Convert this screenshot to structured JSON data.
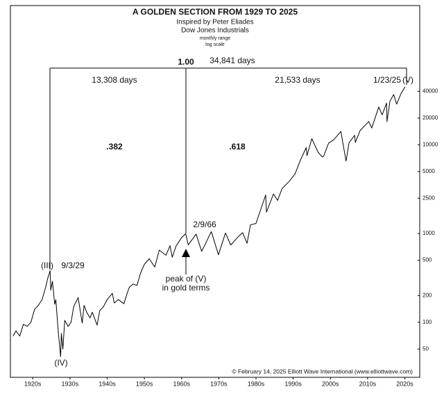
{
  "chart_data": {
    "type": "line",
    "title": "A GOLDEN SECTION FROM 1929 TO 2025",
    "subtitle": [
      "Inspired by Peter Eliades",
      "Dow Jones Industrials",
      "monthly range",
      "log scale"
    ],
    "yscale": "log",
    "grid": false,
    "color": "#000000",
    "xlim": [
      1919,
      2029
    ],
    "ylim": [
      24,
      370000
    ],
    "xticks": [
      {
        "value": 1925,
        "label": "1920s"
      },
      {
        "value": 1935,
        "label": "1930s"
      },
      {
        "value": 1945,
        "label": "1940s"
      },
      {
        "value": 1955,
        "label": "1950s"
      },
      {
        "value": 1965,
        "label": "1960s"
      },
      {
        "value": 1975,
        "label": "1970s"
      },
      {
        "value": 1985,
        "label": "1980s"
      },
      {
        "value": 1995,
        "label": "1990s"
      },
      {
        "value": 2005,
        "label": "2000s"
      },
      {
        "value": 2015,
        "label": "2010s"
      },
      {
        "value": 2025,
        "label": "2020s"
      }
    ],
    "yticks": [
      50,
      100,
      200,
      500,
      1000,
      2500,
      5000,
      10000,
      20000,
      40000
    ],
    "x": [
      1919.7,
      1920.5,
      1921.5,
      1922.5,
      1923.5,
      1924.5,
      1925.5,
      1926.5,
      1927.5,
      1928.5,
      1929.0,
      1929.67,
      1929.85,
      1930.3,
      1930.9,
      1931.2,
      1931.9,
      1932.5,
      1932.7,
      1933.1,
      1933.6,
      1934.5,
      1935.3,
      1936.0,
      1937.2,
      1938.3,
      1938.8,
      1939.5,
      1940.4,
      1941.0,
      1942.3,
      1943.0,
      1944.0,
      1945.0,
      1946.4,
      1946.9,
      1948.0,
      1949.5,
      1950.5,
      1951.0,
      1952.0,
      1953.0,
      1954.0,
      1955.0,
      1956.3,
      1957.8,
      1959.0,
      1960.8,
      1961.9,
      1962.5,
      1963.5,
      1965.0,
      1966.1,
      1966.8,
      1968.9,
      1970.4,
      1973.0,
      1974.9,
      1976.8,
      1978.2,
      1980.0,
      1981.4,
      1982.6,
      1983.5,
      1985.0,
      1987.6,
      1987.8,
      1989.7,
      1990.8,
      1992.0,
      1994.0,
      1995.5,
      1997.0,
      1998.5,
      1998.7,
      2000.0,
      2001.7,
      2002.8,
      2003.2,
      2004.5,
      2006.0,
      2007.8,
      2009.2,
      2010.0,
      2011.5,
      2011.7,
      2013.0,
      2015.3,
      2016.1,
      2018.0,
      2018.9,
      2020.1,
      2020.2,
      2021.0,
      2022.0,
      2022.8,
      2024.0,
      2025.06
    ],
    "series": [
      {
        "name": "Dow Jones Industrials",
        "color": "#000000",
        "values": [
          70,
          80,
          70,
          95,
          90,
          100,
          140,
          155,
          180,
          250,
          310,
          381,
          230,
          290,
          160,
          180,
          75,
          41,
          75,
          50,
          105,
          90,
          100,
          150,
          190,
          98,
          155,
          130,
          112,
          130,
          93,
          135,
          150,
          180,
          212,
          165,
          180,
          162,
          220,
          250,
          270,
          260,
          360,
          450,
          520,
          420,
          650,
          570,
          730,
          540,
          720,
          900,
          995,
          745,
          985,
          630,
          1051,
          577,
          1014,
          742,
          900,
          1024,
          777,
          1250,
          1300,
          2722,
          1739,
          2790,
          2365,
          3200,
          3900,
          4700,
          6800,
          9300,
          7540,
          11700,
          8235,
          7286,
          7500,
          10400,
          11500,
          14164,
          6547,
          10500,
          12800,
          10650,
          14500,
          18300,
          15450,
          26600,
          21700,
          29500,
          18200,
          31000,
          36800,
          28700,
          38000,
          44900
        ]
      }
    ],
    "annotations": [
      "1.00",
      "34,841 days",
      "13,308 days",
      "21,533 days",
      "1/23/25",
      "(V)",
      ".382",
      ".618",
      "2/9/66",
      "(III)",
      "9/3/29",
      "(IV)",
      "peak of (V)",
      "in gold terms"
    ],
    "source": "© February 14, 2025 Elliott Wave International (www.elliottwave.com)"
  }
}
